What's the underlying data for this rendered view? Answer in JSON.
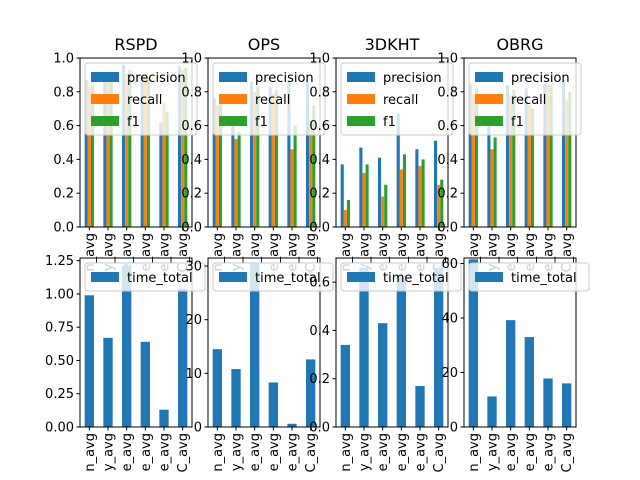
{
  "chart_data": [
    {
      "type": "bar",
      "title": "RSPD",
      "categories": [
        "n_avg",
        "y_avg",
        "e_avg",
        "e_avg",
        "e_avg",
        "C_avg"
      ],
      "series": [
        {
          "name": "precision",
          "values": [
            0.87,
            0.89,
            0.96,
            0.9,
            0.62,
            0.95
          ]
        },
        {
          "name": "recall",
          "values": [
            0.83,
            0.88,
            0.91,
            0.88,
            0.74,
            0.93
          ]
        },
        {
          "name": "f1",
          "values": [
            0.84,
            0.89,
            0.93,
            0.89,
            0.68,
            0.94
          ]
        }
      ],
      "ylim": [
        0,
        1.0
      ],
      "yticks": [
        "0.0",
        "0.2",
        "0.4",
        "0.6",
        "0.8",
        "1.0"
      ],
      "legend": "upper-left"
    },
    {
      "type": "bar",
      "title": "OPS",
      "categories": [
        "n_avg",
        "y_avg",
        "e_avg",
        "e_avg",
        "e_avg",
        "C_avg"
      ],
      "series": [
        {
          "name": "precision",
          "values": [
            0.76,
            0.62,
            0.86,
            0.83,
            0.86,
            0.86
          ]
        },
        {
          "name": "recall",
          "values": [
            0.72,
            0.52,
            0.8,
            0.79,
            0.46,
            0.62
          ]
        },
        {
          "name": "f1",
          "values": [
            0.74,
            0.56,
            0.83,
            0.81,
            0.6,
            0.72
          ]
        }
      ],
      "ylim": [
        0,
        1.0
      ],
      "yticks": [
        "0.0",
        "0.2",
        "0.4",
        "0.6",
        "0.8",
        "1.0"
      ],
      "legend": "upper-left"
    },
    {
      "type": "bar",
      "title": "3DKHT",
      "categories": [
        "n_avg",
        "y_avg",
        "e_avg",
        "e_avg",
        "e_avg",
        "C_avg"
      ],
      "series": [
        {
          "name": "precision",
          "values": [
            0.37,
            0.47,
            0.41,
            0.67,
            0.46,
            0.51
          ]
        },
        {
          "name": "recall",
          "values": [
            0.1,
            0.32,
            0.18,
            0.34,
            0.36,
            0.25
          ]
        },
        {
          "name": "f1",
          "values": [
            0.16,
            0.37,
            0.25,
            0.43,
            0.4,
            0.28
          ]
        }
      ],
      "ylim": [
        0,
        1.0
      ],
      "yticks": [
        "0.0",
        "0.2",
        "0.4",
        "0.6",
        "0.8",
        "1.0"
      ],
      "legend": "upper-left"
    },
    {
      "type": "bar",
      "title": "OBRG",
      "categories": [
        "n_avg",
        "y_avg",
        "e_avg",
        "e_avg",
        "e_avg",
        "C_avg"
      ],
      "series": [
        {
          "name": "precision",
          "values": [
            0.85,
            0.62,
            0.84,
            0.82,
            0.85,
            0.87
          ]
        },
        {
          "name": "recall",
          "values": [
            0.79,
            0.46,
            0.78,
            0.72,
            0.84,
            0.75
          ]
        },
        {
          "name": "f1",
          "values": [
            0.82,
            0.53,
            0.81,
            0.7,
            0.84,
            0.8
          ]
        }
      ],
      "ylim": [
        0,
        1.0
      ],
      "yticks": [
        "0.0",
        "0.2",
        "0.4",
        "0.6",
        "0.8",
        "1.0"
      ],
      "legend": "upper-left"
    },
    {
      "type": "bar",
      "title": "",
      "categories": [
        "n_avg",
        "y_avg",
        "e_avg",
        "e_avg",
        "e_avg",
        "C_avg"
      ],
      "series": [
        {
          "name": "time_total",
          "values": [
            0.99,
            0.67,
            1.21,
            0.64,
            0.13,
            1.04
          ]
        }
      ],
      "ylim": [
        0,
        1.27
      ],
      "yticks": [
        "0.00",
        "0.25",
        "0.50",
        "0.75",
        "1.00",
        "1.25"
      ],
      "legend": "upper-left"
    },
    {
      "type": "bar",
      "title": "",
      "categories": [
        "n_avg",
        "y_avg",
        "e_avg",
        "e_avg",
        "e_avg",
        "C_avg"
      ],
      "series": [
        {
          "name": "time_total",
          "values": [
            14.5,
            10.8,
            30.5,
            8.3,
            0.6,
            12.6
          ]
        }
      ],
      "ylim": [
        0,
        31.5
      ],
      "yticks": [
        "0",
        "10",
        "20",
        "30"
      ],
      "legend": "upper-left"
    },
    {
      "type": "bar",
      "title": "",
      "categories": [
        "n_avg",
        "y_avg",
        "e_avg",
        "e_avg",
        "e_avg",
        "C_avg"
      ],
      "series": [
        {
          "name": "time_total",
          "values": [
            0.34,
            0.66,
            0.43,
            0.63,
            0.17,
            0.66
          ]
        }
      ],
      "ylim": [
        0,
        0.7
      ],
      "yticks": [
        "0.0",
        "0.2",
        "0.4",
        "0.6"
      ],
      "legend": "upper-left"
    },
    {
      "type": "bar",
      "title": "",
      "categories": [
        "n_avg",
        "y_avg",
        "e_avg",
        "e_avg",
        "e_avg",
        "C_avg"
      ],
      "series": [
        {
          "name": "time_total",
          "values": [
            61.5,
            11.2,
            39.2,
            33.0,
            17.8,
            16.0
          ]
        }
      ],
      "ylim": [
        0,
        62
      ],
      "yticks": [
        "0",
        "20",
        "40",
        "60"
      ],
      "legend": "upper-left"
    }
  ],
  "colors": {
    "precision": "#1f77b4",
    "recall": "#ff7f0e",
    "f1": "#2ca02c",
    "time_total": "#1f77b4",
    "axes": "#000000"
  }
}
